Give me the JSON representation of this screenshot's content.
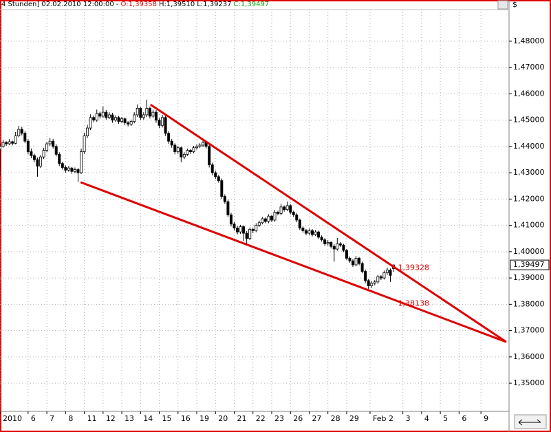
{
  "chart_data": {
    "type": "candlestick",
    "header": {
      "period": "4 Stunden] 02.02.2010 12:00:00 -",
      "open": "O:1,39358",
      "high": "H:1,39510",
      "low": "L:1,39237",
      "close": "C:1,39497"
    },
    "currency": "$",
    "ohlc": [
      [
        1.439,
        1.441,
        1.429,
        1.44
      ],
      [
        1.44,
        1.4425,
        1.4395,
        1.4415
      ],
      [
        1.4415,
        1.442,
        1.4402,
        1.441
      ],
      [
        1.441,
        1.4428,
        1.4405,
        1.4418
      ],
      [
        1.4418,
        1.4422,
        1.4404,
        1.4412
      ],
      [
        1.4412,
        1.4455,
        1.4408,
        1.444
      ],
      [
        1.444,
        1.4478,
        1.4435,
        1.4465
      ],
      [
        1.4465,
        1.4475,
        1.4442,
        1.445
      ],
      [
        1.445,
        1.4458,
        1.4412,
        1.442
      ],
      [
        1.442,
        1.4428,
        1.437,
        1.438
      ],
      [
        1.438,
        1.4392,
        1.4355,
        1.4365
      ],
      [
        1.4365,
        1.4372,
        1.434,
        1.435
      ],
      [
        1.435,
        1.4358,
        1.4285,
        1.4325
      ],
      [
        1.4325,
        1.4368,
        1.4318,
        1.436
      ],
      [
        1.436,
        1.4395,
        1.4352,
        1.4385
      ],
      [
        1.4385,
        1.4418,
        1.4378,
        1.441
      ],
      [
        1.441,
        1.4432,
        1.4402,
        1.442
      ],
      [
        1.442,
        1.4428,
        1.4392,
        1.44
      ],
      [
        1.44,
        1.4408,
        1.4362,
        1.437
      ],
      [
        1.437,
        1.4378,
        1.4325,
        1.4335
      ],
      [
        1.4335,
        1.4342,
        1.4312,
        1.432
      ],
      [
        1.432,
        1.4328,
        1.43,
        1.431
      ],
      [
        1.431,
        1.4326,
        1.4304,
        1.4318
      ],
      [
        1.4318,
        1.4322,
        1.4296,
        1.4305
      ],
      [
        1.4305,
        1.432,
        1.4298,
        1.4312
      ],
      [
        1.4312,
        1.4318,
        1.4265,
        1.43
      ],
      [
        1.43,
        1.4392,
        1.4295,
        1.438
      ],
      [
        1.438,
        1.4452,
        1.4372,
        1.444
      ],
      [
        1.444,
        1.4482,
        1.4432,
        1.447
      ],
      [
        1.447,
        1.4522,
        1.4462,
        1.451
      ],
      [
        1.451,
        1.4518,
        1.4492,
        1.45
      ],
      [
        1.45,
        1.454,
        1.4494,
        1.4525
      ],
      [
        1.4525,
        1.4532,
        1.4506,
        1.4515
      ],
      [
        1.4515,
        1.4552,
        1.4508,
        1.453
      ],
      [
        1.453,
        1.4538,
        1.4502,
        1.451
      ],
      [
        1.451,
        1.453,
        1.4504,
        1.452
      ],
      [
        1.452,
        1.4528,
        1.449,
        1.45
      ],
      [
        1.45,
        1.4518,
        1.4494,
        1.451
      ],
      [
        1.451,
        1.4516,
        1.4486,
        1.4495
      ],
      [
        1.4495,
        1.4512,
        1.4488,
        1.4505
      ],
      [
        1.4505,
        1.451,
        1.448,
        1.449
      ],
      [
        1.449,
        1.4496,
        1.4476,
        1.4485
      ],
      [
        1.4485,
        1.4502,
        1.4478,
        1.4495
      ],
      [
        1.4495,
        1.453,
        1.4488,
        1.452
      ],
      [
        1.452,
        1.456,
        1.4512,
        1.4545
      ],
      [
        1.4545,
        1.455,
        1.45,
        1.451
      ],
      [
        1.451,
        1.453,
        1.4502,
        1.452
      ],
      [
        1.452,
        1.4578,
        1.4512,
        1.4545
      ],
      [
        1.4545,
        1.4552,
        1.4506,
        1.4515
      ],
      [
        1.4515,
        1.454,
        1.4508,
        1.453
      ],
      [
        1.453,
        1.4538,
        1.449,
        1.45
      ],
      [
        1.45,
        1.4508,
        1.447,
        1.448
      ],
      [
        1.448,
        1.452,
        1.4472,
        1.451
      ],
      [
        1.451,
        1.4518,
        1.444,
        1.445
      ],
      [
        1.445,
        1.4458,
        1.441,
        1.442
      ],
      [
        1.442,
        1.4428,
        1.4395,
        1.4405
      ],
      [
        1.4405,
        1.4412,
        1.437,
        1.438
      ],
      [
        1.438,
        1.4402,
        1.4372,
        1.4395
      ],
      [
        1.4395,
        1.44,
        1.434,
        1.436
      ],
      [
        1.436,
        1.4378,
        1.4352,
        1.437
      ],
      [
        1.437,
        1.4392,
        1.4364,
        1.4385
      ],
      [
        1.4385,
        1.439,
        1.4372,
        1.438
      ],
      [
        1.438,
        1.4402,
        1.4374,
        1.4395
      ],
      [
        1.4395,
        1.4408,
        1.4388,
        1.44
      ],
      [
        1.44,
        1.4412,
        1.4394,
        1.4405
      ],
      [
        1.4405,
        1.4425,
        1.4398,
        1.4415
      ],
      [
        1.4415,
        1.442,
        1.4392,
        1.44
      ],
      [
        1.44,
        1.4406,
        1.432,
        1.433
      ],
      [
        1.433,
        1.4338,
        1.429,
        1.43
      ],
      [
        1.43,
        1.4308,
        1.4276,
        1.4285
      ],
      [
        1.4285,
        1.4292,
        1.4262,
        1.427
      ],
      [
        1.427,
        1.4278,
        1.42,
        1.421
      ],
      [
        1.421,
        1.4218,
        1.4182,
        1.419
      ],
      [
        1.419,
        1.4198,
        1.4132,
        1.414
      ],
      [
        1.414,
        1.4148,
        1.4096,
        1.4105
      ],
      [
        1.4105,
        1.4112,
        1.408,
        1.409
      ],
      [
        1.409,
        1.4098,
        1.4066,
        1.4075
      ],
      [
        1.4075,
        1.4102,
        1.4068,
        1.4095
      ],
      [
        1.4095,
        1.41,
        1.404,
        1.407
      ],
      [
        1.407,
        1.4078,
        1.403,
        1.405
      ],
      [
        1.405,
        1.4092,
        1.4044,
        1.4085
      ],
      [
        1.4085,
        1.409,
        1.407,
        1.408
      ],
      [
        1.408,
        1.4108,
        1.4074,
        1.41
      ],
      [
        1.41,
        1.4118,
        1.4094,
        1.411
      ],
      [
        1.411,
        1.4132,
        1.4104,
        1.4125
      ],
      [
        1.4125,
        1.413,
        1.4108,
        1.4115
      ],
      [
        1.4115,
        1.4142,
        1.4108,
        1.4135
      ],
      [
        1.4135,
        1.414,
        1.4112,
        1.412
      ],
      [
        1.412,
        1.4158,
        1.4114,
        1.415
      ],
      [
        1.415,
        1.4156,
        1.4138,
        1.4145
      ],
      [
        1.4145,
        1.4182,
        1.4138,
        1.417
      ],
      [
        1.417,
        1.4176,
        1.4152,
        1.416
      ],
      [
        1.416,
        1.419,
        1.4154,
        1.4175
      ],
      [
        1.4175,
        1.418,
        1.4142,
        1.415
      ],
      [
        1.415,
        1.4156,
        1.4132,
        1.414
      ],
      [
        1.414,
        1.4146,
        1.4112,
        1.412
      ],
      [
        1.412,
        1.4126,
        1.4082,
        1.409
      ],
      [
        1.409,
        1.4096,
        1.4072,
        1.408
      ],
      [
        1.408,
        1.4086,
        1.4062,
        1.407
      ],
      [
        1.407,
        1.4088,
        1.4064,
        1.408
      ],
      [
        1.408,
        1.4086,
        1.4058,
        1.4065
      ],
      [
        1.4065,
        1.4082,
        1.406,
        1.4075
      ],
      [
        1.4075,
        1.408,
        1.4048,
        1.4055
      ],
      [
        1.4055,
        1.4062,
        1.4038,
        1.4045
      ],
      [
        1.4045,
        1.4052,
        1.4022,
        1.403
      ],
      [
        1.403,
        1.4044,
        1.4024,
        1.4035
      ],
      [
        1.4035,
        1.404,
        1.4012,
        1.402
      ],
      [
        1.402,
        1.4028,
        1.3962,
        1.401
      ],
      [
        1.401,
        1.4052,
        1.4004,
        1.403
      ],
      [
        1.403,
        1.4036,
        1.4018,
        1.4025
      ],
      [
        1.4025,
        1.403,
        1.3998,
        1.4005
      ],
      [
        1.4005,
        1.401,
        1.3968,
        1.3975
      ],
      [
        1.3975,
        1.3982,
        1.3958,
        1.3965
      ],
      [
        1.3965,
        1.3972,
        1.3942,
        1.395
      ],
      [
        1.395,
        1.3984,
        1.3944,
        1.3975
      ],
      [
        1.3975,
        1.398,
        1.3948,
        1.3955
      ],
      [
        1.3955,
        1.3962,
        1.3918,
        1.3925
      ],
      [
        1.3925,
        1.3932,
        1.388,
        1.389
      ],
      [
        1.389,
        1.3896,
        1.3858,
        1.387
      ],
      [
        1.387,
        1.3888,
        1.3862,
        1.388
      ],
      [
        1.388,
        1.3892,
        1.3872,
        1.3885
      ],
      [
        1.3885,
        1.3912,
        1.3878,
        1.3905
      ],
      [
        1.3905,
        1.391,
        1.3892,
        1.39
      ],
      [
        1.39,
        1.3928,
        1.3894,
        1.392
      ],
      [
        1.392,
        1.3938,
        1.3912,
        1.393
      ],
      [
        1.393,
        1.3936,
        1.3885,
        1.391
      ],
      [
        1.39358,
        1.3951,
        1.39237,
        1.39497
      ]
    ],
    "last_label": "1,39497",
    "up_color": "#ffffff",
    "down_color": "#000000",
    "trendlines": [
      {
        "x": [
          48.2,
          162.1
        ],
        "y": [
          1.4559,
          1.3657
        ],
        "label": "1,39328",
        "color": "#dd0000"
      },
      {
        "x": [
          25.8,
          162.1
        ],
        "y": [
          1.4264,
          1.3657
        ],
        "label": "1,38138",
        "color": "#dd0000"
      }
    ],
    "xlim": [
      0,
      163
    ],
    "xticks": [
      {
        "value": 0,
        "label": "2010"
      },
      {
        "value": 9,
        "label": "6"
      },
      {
        "value": 15,
        "label": "7"
      },
      {
        "value": 21,
        "label": "8"
      },
      {
        "value": 27,
        "label": "11"
      },
      {
        "value": 33,
        "label": "12"
      },
      {
        "value": 39,
        "label": "13"
      },
      {
        "value": 45,
        "label": "14"
      },
      {
        "value": 51,
        "label": "15"
      },
      {
        "value": 57,
        "label": "16"
      },
      {
        "value": 63,
        "label": "19"
      },
      {
        "value": 69,
        "label": "20"
      },
      {
        "value": 75,
        "label": "21"
      },
      {
        "value": 81,
        "label": "22"
      },
      {
        "value": 87,
        "label": "23"
      },
      {
        "value": 93,
        "label": "26"
      },
      {
        "value": 99,
        "label": "27"
      },
      {
        "value": 105,
        "label": "28"
      },
      {
        "value": 111,
        "label": "29"
      },
      {
        "value": 118.5,
        "label": "Feb 2"
      },
      {
        "value": 129,
        "label": "3"
      },
      {
        "value": 135,
        "label": "4"
      },
      {
        "value": 141,
        "label": "5"
      },
      {
        "value": 147,
        "label": "6"
      },
      {
        "value": 154,
        "label": "9"
      }
    ],
    "ylim": [
      1.3393,
      1.492
    ],
    "yticks": [
      {
        "value": 1.35,
        "label": "1,35000"
      },
      {
        "value": 1.36,
        "label": "1,36000"
      },
      {
        "value": 1.37,
        "label": "1,37000"
      },
      {
        "value": 1.38,
        "label": "1,38000"
      },
      {
        "value": 1.39,
        "label": "1,39000"
      },
      {
        "value": 1.4,
        "label": "1,40000"
      },
      {
        "value": 1.41,
        "label": "1,41000"
      },
      {
        "value": 1.42,
        "label": "1,42000"
      },
      {
        "value": 1.43,
        "label": "1,43000"
      },
      {
        "value": 1.44,
        "label": "1,44000"
      },
      {
        "value": 1.45,
        "label": "1,45000"
      },
      {
        "value": 1.46,
        "label": "1,46000"
      },
      {
        "value": 1.47,
        "label": "1,47000"
      },
      {
        "value": 1.48,
        "label": "1,48000"
      }
    ],
    "grid": true
  }
}
